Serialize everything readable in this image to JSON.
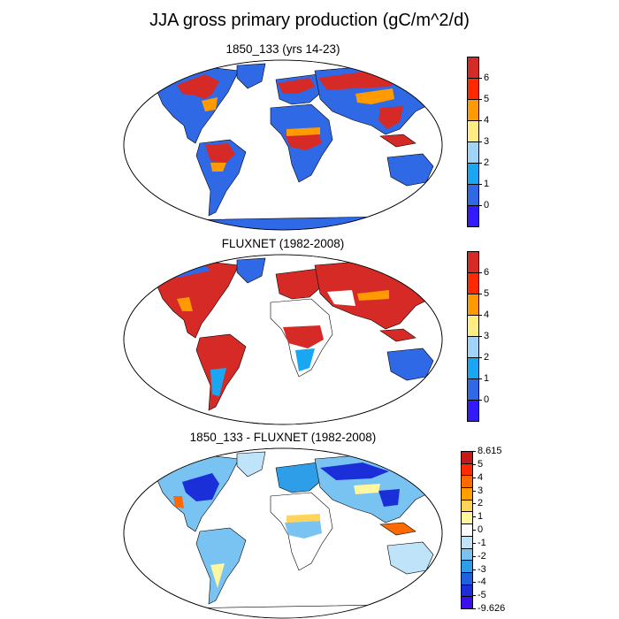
{
  "figure": {
    "title": "JJA gross primary production (gC/m^2/d)"
  },
  "panels": [
    {
      "title": "1850_133 (yrs 14-23)",
      "colorbar": {
        "labels": [
          "6",
          "5",
          "4",
          "3",
          "2",
          "1",
          "0"
        ],
        "colors": [
          "#d62a27",
          "#ff2a00",
          "#ff9a00",
          "#ffec82",
          "#9fd4f6",
          "#19a7f4",
          "#2f69e6",
          "#3419fa"
        ]
      }
    },
    {
      "title": "FLUXNET (1982-2008)",
      "colorbar": {
        "labels": [
          "6",
          "5",
          "4",
          "3",
          "2",
          "1",
          "0"
        ],
        "colors": [
          "#d62a27",
          "#ff2a00",
          "#ff9a00",
          "#ffec82",
          "#9fd4f6",
          "#19a7f4",
          "#2f69e6",
          "#3419fa"
        ]
      }
    },
    {
      "title": "1850_133 - FLUXNET (1982-2008)",
      "colorbar": {
        "labels": [
          "8.615",
          "5",
          "4",
          "3",
          "2",
          "1",
          "0",
          "-1",
          "-2",
          "-3",
          "-4",
          "-5",
          "-9.626"
        ],
        "colors": [
          "#c61a1a",
          "#ff2a00",
          "#ff6a00",
          "#ffa000",
          "#ffd45a",
          "#fff7a0",
          "#ffffff",
          "#bfe3f8",
          "#79c3f3",
          "#2f9ee9",
          "#1f5fe0",
          "#1a2fd8",
          "#3a10f0"
        ]
      }
    }
  ]
}
